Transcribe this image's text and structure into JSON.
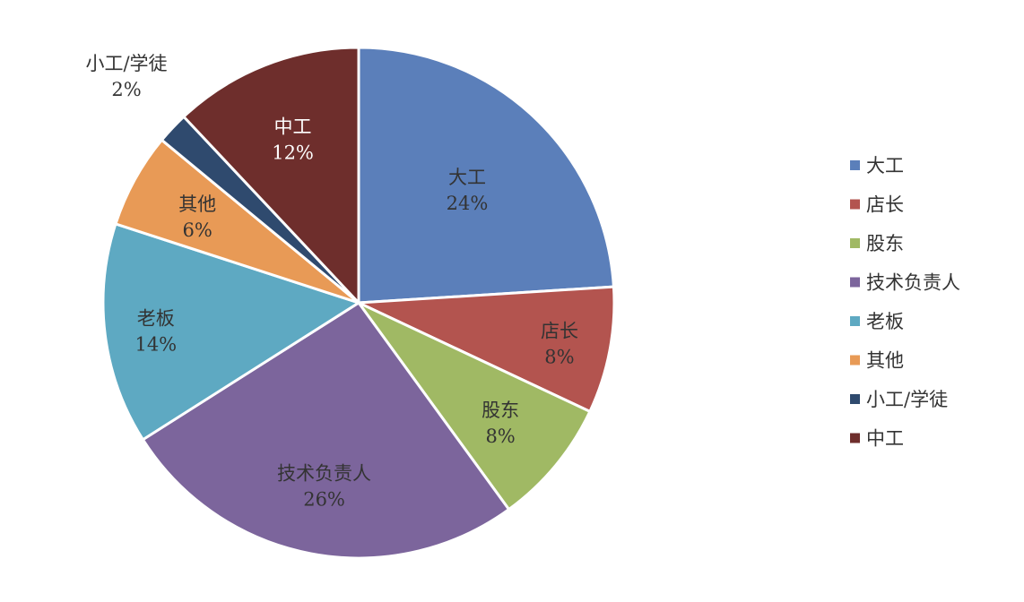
{
  "chart_data": {
    "type": "pie",
    "title": "",
    "legend_position": "right",
    "slices": [
      {
        "label": "大工",
        "value": 24,
        "value_label": "24%",
        "color": "#5b7fba"
      },
      {
        "label": "店长",
        "value": 8,
        "value_label": "8%",
        "color": "#b3544f"
      },
      {
        "label": "股东",
        "value": 8,
        "value_label": "8%",
        "color": "#a0b964"
      },
      {
        "label": "技术负责人",
        "value": 26,
        "value_label": "26%",
        "color": "#7c659c"
      },
      {
        "label": "老板",
        "value": 14,
        "value_label": "14%",
        "color": "#5ea9c2"
      },
      {
        "label": "其他",
        "value": 6,
        "value_label": "6%",
        "color": "#e89a56"
      },
      {
        "label": "小工/学徒",
        "value": 2,
        "value_label": "2%",
        "color": "#2f4a6e"
      },
      {
        "label": "中工",
        "value": 12,
        "value_label": "12%",
        "color": "#6e2e2c"
      }
    ]
  }
}
